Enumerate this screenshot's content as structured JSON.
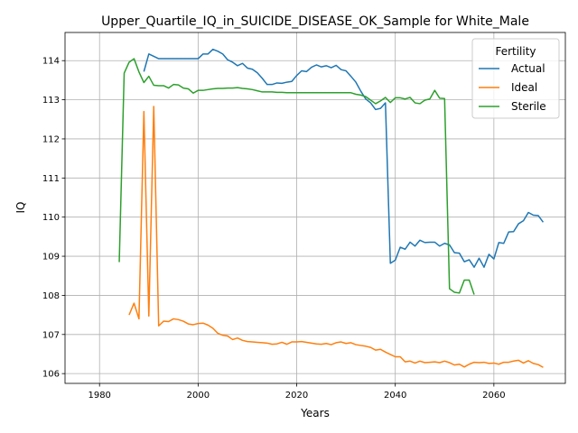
{
  "chart_data": {
    "type": "line",
    "title": "Upper_Quartile_IQ_in_SUICIDE_DISEASE_OK_Sample for White_Male",
    "xlabel": "Years",
    "ylabel": "IQ",
    "xlim": [
      1973,
      2074.5
    ],
    "ylim": [
      105.75,
      114.72
    ],
    "xticks": [
      1980,
      2000,
      2020,
      2040,
      2060
    ],
    "yticks": [
      106,
      107,
      108,
      109,
      110,
      111,
      112,
      113,
      114
    ],
    "grid": true,
    "legend": {
      "title": "Fertility",
      "position": "top-right"
    },
    "series": [
      {
        "name": "Actual",
        "color": "#1f77b4",
        "x": [
          1989,
          1990,
          1991,
          1992,
          1993,
          1994,
          1995,
          1996,
          1997,
          1998,
          1999,
          2000,
          2001,
          2002,
          2003,
          2004,
          2005,
          2006,
          2007,
          2008,
          2009,
          2010,
          2011,
          2012,
          2013,
          2014,
          2015,
          2016,
          2017,
          2018,
          2019,
          2020,
          2021,
          2022,
          2023,
          2024,
          2025,
          2026,
          2027,
          2028,
          2029,
          2030,
          2031,
          2032,
          2033,
          2034,
          2035,
          2036,
          2037,
          2038,
          2039,
          2040,
          2041,
          2042,
          2043,
          2044,
          2045,
          2046,
          2047,
          2048,
          2049,
          2050,
          2051,
          2052,
          2053,
          2054,
          2055,
          2056,
          2057,
          2058,
          2059,
          2060,
          2061,
          2062,
          2063,
          2064,
          2065,
          2066,
          2067,
          2068,
          2069,
          2070
        ],
        "y": [
          113.72,
          114.17,
          114.11,
          114.05,
          114.05,
          114.05,
          114.05,
          114.05,
          114.05,
          114.05,
          114.05,
          114.05,
          114.17,
          114.17,
          114.29,
          114.24,
          114.17,
          114.02,
          113.96,
          113.87,
          113.93,
          113.81,
          113.78,
          113.69,
          113.55,
          113.39,
          113.39,
          113.43,
          113.42,
          113.45,
          113.47,
          113.62,
          113.74,
          113.72,
          113.83,
          113.89,
          113.84,
          113.87,
          113.82,
          113.88,
          113.77,
          113.74,
          113.6,
          113.45,
          113.22,
          113.02,
          112.92,
          112.75,
          112.78,
          112.92,
          108.82,
          108.9,
          109.23,
          109.18,
          109.36,
          109.26,
          109.41,
          109.35,
          109.36,
          109.36,
          109.26,
          109.33,
          109.29,
          109.09,
          109.08,
          108.86,
          108.91,
          108.72,
          108.95,
          108.72,
          109.05,
          108.93,
          109.35,
          109.33,
          109.62,
          109.63,
          109.83,
          109.91,
          110.12,
          110.05,
          110.04,
          109.87
        ]
      },
      {
        "name": "Ideal",
        "color": "#ff7f0e",
        "x": [
          1986,
          1987,
          1988,
          1989,
          1990,
          1991,
          1992,
          1993,
          1994,
          1995,
          1996,
          1997,
          1998,
          1999,
          2000,
          2001,
          2002,
          2003,
          2004,
          2005,
          2006,
          2007,
          2008,
          2009,
          2010,
          2011,
          2012,
          2013,
          2014,
          2015,
          2016,
          2017,
          2018,
          2019,
          2020,
          2021,
          2022,
          2023,
          2024,
          2025,
          2026,
          2027,
          2028,
          2029,
          2030,
          2031,
          2032,
          2033,
          2034,
          2035,
          2036,
          2037,
          2038,
          2039,
          2040,
          2041,
          2042,
          2043,
          2044,
          2045,
          2046,
          2047,
          2048,
          2049,
          2050,
          2051,
          2052,
          2053,
          2054,
          2055,
          2056,
          2057,
          2058,
          2059,
          2060,
          2061,
          2062,
          2063,
          2064,
          2065,
          2066,
          2067,
          2068,
          2069,
          2070
        ],
        "y": [
          107.5,
          107.8,
          107.4,
          112.7,
          107.47,
          112.83,
          107.22,
          107.34,
          107.33,
          107.4,
          107.38,
          107.34,
          107.27,
          107.25,
          107.28,
          107.29,
          107.24,
          107.16,
          107.03,
          106.98,
          106.96,
          106.87,
          106.91,
          106.85,
          106.82,
          106.81,
          106.8,
          106.79,
          106.78,
          106.75,
          106.76,
          106.8,
          106.75,
          106.81,
          106.81,
          106.82,
          106.8,
          106.78,
          106.76,
          106.75,
          106.77,
          106.74,
          106.79,
          106.81,
          106.77,
          106.79,
          106.74,
          106.72,
          106.7,
          106.67,
          106.6,
          106.62,
          106.55,
          106.49,
          106.43,
          106.43,
          106.3,
          106.32,
          106.27,
          106.32,
          106.28,
          106.29,
          106.3,
          106.28,
          106.32,
          106.28,
          106.22,
          106.24,
          106.17,
          106.24,
          106.29,
          106.28,
          106.29,
          106.26,
          106.27,
          106.24,
          106.29,
          106.29,
          106.32,
          106.34,
          106.27,
          106.33,
          106.26,
          106.23,
          106.16
        ]
      },
      {
        "name": "Sterile",
        "color": "#2ca02c",
        "x": [
          1984,
          1985,
          1986,
          1987,
          1988,
          1989,
          1990,
          1991,
          1992,
          1993,
          1994,
          1995,
          1996,
          1997,
          1998,
          1999,
          2000,
          2001,
          2002,
          2003,
          2004,
          2005,
          2006,
          2007,
          2008,
          2009,
          2010,
          2011,
          2012,
          2013,
          2014,
          2015,
          2016,
          2017,
          2018,
          2019,
          2020,
          2021,
          2022,
          2023,
          2024,
          2025,
          2026,
          2027,
          2028,
          2029,
          2030,
          2031,
          2032,
          2033,
          2034,
          2035,
          2036,
          2037,
          2038,
          2039,
          2040,
          2041,
          2042,
          2043,
          2044,
          2045,
          2046,
          2047,
          2048,
          2049,
          2050,
          2051,
          2052,
          2053,
          2054,
          2055,
          2056
        ],
        "y": [
          108.85,
          113.68,
          113.96,
          114.05,
          113.71,
          113.44,
          113.6,
          113.37,
          113.36,
          113.36,
          113.3,
          113.39,
          113.38,
          113.3,
          113.28,
          113.17,
          113.24,
          113.24,
          113.26,
          113.28,
          113.29,
          113.29,
          113.3,
          113.3,
          113.31,
          113.29,
          113.28,
          113.26,
          113.23,
          113.2,
          113.2,
          113.2,
          113.19,
          113.19,
          113.18,
          113.18,
          113.18,
          113.18,
          113.18,
          113.18,
          113.18,
          113.18,
          113.18,
          113.18,
          113.18,
          113.18,
          113.18,
          113.18,
          113.14,
          113.12,
          113.08,
          112.99,
          112.9,
          112.97,
          113.06,
          112.93,
          113.05,
          113.05,
          113.02,
          113.06,
          112.92,
          112.9,
          112.99,
          113.02,
          113.24,
          113.04,
          113.03,
          108.17,
          108.08,
          108.06,
          108.39,
          108.39,
          108.02
        ]
      }
    ]
  }
}
